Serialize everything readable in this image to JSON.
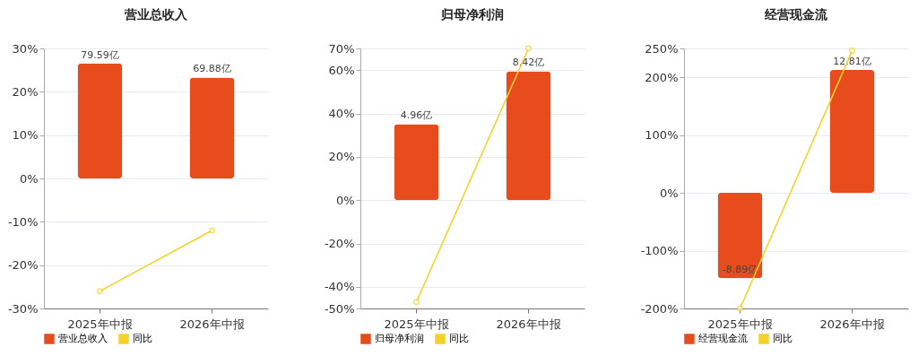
{
  "chart_data": [
    {
      "type": "bar",
      "title": "营业总收入",
      "categories": [
        "2025年中报",
        "2026年中报"
      ],
      "series": [
        {
          "name": "营业总收入",
          "axis": "y2",
          "color": "#e84c1c",
          "values": [
            79.59,
            69.88
          ],
          "value_labels": [
            "79.59亿",
            "69.88亿"
          ]
        },
        {
          "name": "同比",
          "type": "line",
          "color": "#f5d22a",
          "values": [
            -26,
            -12
          ]
        }
      ],
      "ylim": [
        -30,
        30
      ],
      "yticks": [
        {
          "value": -30,
          "label": "-30%"
        },
        {
          "value": -20,
          "label": "-20%"
        },
        {
          "value": -10,
          "label": "-10%"
        },
        {
          "value": 0,
          "label": "0%"
        },
        {
          "value": 10,
          "label": "10%"
        },
        {
          "value": 20,
          "label": "20%"
        },
        {
          "value": 30,
          "label": "30%"
        }
      ],
      "y2lim": [
        -90,
        90
      ],
      "tick_labels": "y",
      "grid": "y",
      "legend": "bottom",
      "marker": "circle"
    },
    {
      "type": "bar",
      "title": "归母净利润",
      "categories": [
        "2025年中报",
        "2026年中报"
      ],
      "series": [
        {
          "name": "归母净利润",
          "axis": "y2",
          "color": "#e84c1c",
          "values": [
            4.96,
            8.42
          ],
          "value_labels": [
            "4.96亿",
            "8.42亿"
          ]
        },
        {
          "name": "同比",
          "type": "line",
          "color": "#f5d22a",
          "values": [
            -47,
            70
          ]
        }
      ],
      "ylim": [
        -50,
        70
      ],
      "yticks": [
        {
          "value": -50,
          "label": "-50%"
        },
        {
          "value": -40,
          "label": "-40%"
        },
        {
          "value": -20,
          "label": "-20%"
        },
        {
          "value": 0,
          "label": "0%"
        },
        {
          "value": 20,
          "label": "20%"
        },
        {
          "value": 40,
          "label": "40%"
        },
        {
          "value": 60,
          "label": "60%"
        },
        {
          "value": 70,
          "label": "70%"
        }
      ],
      "y2lim": [
        -7.08,
        9.91
      ],
      "tick_labels": "y",
      "grid": "y",
      "legend": "bottom",
      "marker": "circle"
    },
    {
      "type": "bar",
      "title": "经营现金流",
      "categories": [
        "2025年中报",
        "2026年中报"
      ],
      "series": [
        {
          "name": "经营现金流",
          "axis": "y2",
          "color": "#e84c1c",
          "values": [
            -8.89,
            12.81
          ],
          "value_labels": [
            "-8.89亿",
            "12.81亿"
          ]
        },
        {
          "name": "同比",
          "type": "line",
          "color": "#f5d22a",
          "values": [
            -200,
            246
          ]
        }
      ],
      "ylim": [
        -200,
        250
      ],
      "yticks": [
        {
          "value": -200,
          "label": "-200%"
        },
        {
          "value": -100,
          "label": "-100%"
        },
        {
          "value": 0,
          "label": "0%"
        },
        {
          "value": 100,
          "label": "100%"
        },
        {
          "value": 200,
          "label": "200%"
        },
        {
          "value": 250,
          "label": "250%"
        }
      ],
      "y2lim": [
        -12.05,
        15.06
      ],
      "tick_labels": "y",
      "grid": "y",
      "legend": "bottom",
      "marker": "circle"
    }
  ]
}
